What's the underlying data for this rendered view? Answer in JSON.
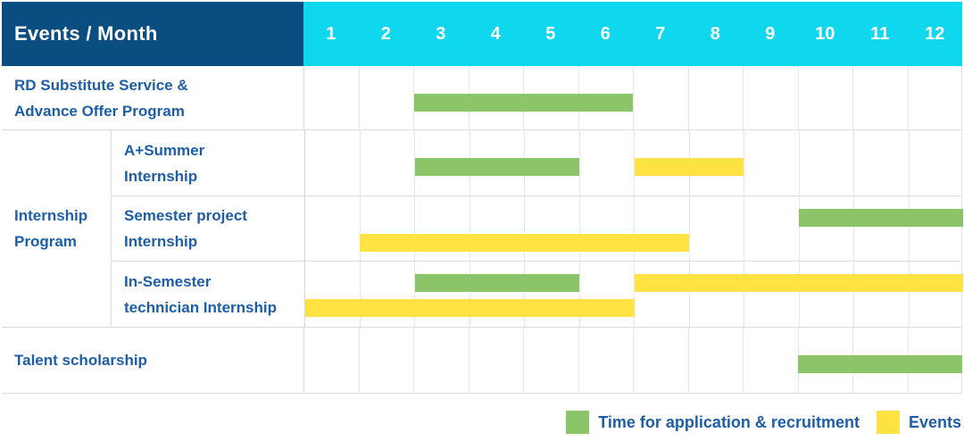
{
  "header": {
    "title": "Events / Month"
  },
  "colors": {
    "navy": "#0a4d81",
    "cyan": "#0fd7ee",
    "application": "#8bc469",
    "event": "#ffe342",
    "label_blue": "#1d5ea7"
  },
  "legend": [
    {
      "type": "application",
      "label": "Time for application & recruitment"
    },
    {
      "type": "event",
      "label": "Events"
    }
  ],
  "chart_data": {
    "type": "bar",
    "subtype": "gantt",
    "title": "Events / Month",
    "months": [
      1,
      2,
      3,
      4,
      5,
      6,
      7,
      8,
      9,
      10,
      11,
      12
    ],
    "x_range": [
      1,
      12
    ],
    "grid": true,
    "legend_position": "bottom-right",
    "group_cell": {
      "label_lines": [
        "Internship",
        "Program"
      ],
      "row_span": [
        1,
        3
      ]
    },
    "rows": [
      {
        "label_lines": [
          "RD Substitute Service &",
          "Advance Offer Program"
        ],
        "grouped": false,
        "lines": [
          [
            {
              "type": "application",
              "start": 3,
              "end": 6
            }
          ]
        ]
      },
      {
        "label_lines": [
          "A+Summer",
          "Internship"
        ],
        "grouped": true,
        "lines": [
          [
            {
              "type": "application",
              "start": 3,
              "end": 5
            },
            {
              "type": "event",
              "start": 7,
              "end": 8
            }
          ]
        ]
      },
      {
        "label_lines": [
          "Semester project",
          "Internship"
        ],
        "grouped": true,
        "lines": [
          [
            {
              "type": "application",
              "start": 10,
              "end": 12
            }
          ],
          [
            {
              "type": "event",
              "start": 2,
              "end": 7
            }
          ]
        ]
      },
      {
        "label_lines": [
          "In-Semester",
          "technician Internship"
        ],
        "grouped": true,
        "lines": [
          [
            {
              "type": "application",
              "start": 3,
              "end": 5
            },
            {
              "type": "event",
              "start": 7,
              "end": 12
            }
          ],
          [
            {
              "type": "event",
              "start": 1,
              "end": 6
            }
          ]
        ]
      },
      {
        "label_lines": [
          "Talent scholarship"
        ],
        "grouped": false,
        "lines": [
          [
            {
              "type": "application",
              "start": 10,
              "end": 12
            }
          ]
        ]
      }
    ]
  }
}
